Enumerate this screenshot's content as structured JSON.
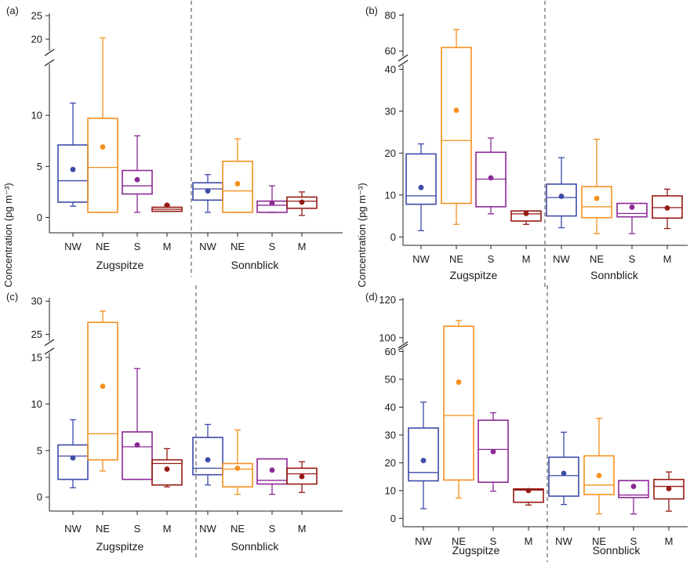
{
  "ylabel": "Concentration (pg m⁻³)",
  "groups": [
    "Zugspitze",
    "Sonnblick"
  ],
  "colors": {
    "NW": "#3c4aa8",
    "NE": "#f5901e",
    "S": "#8a2896",
    "M": "#961a14"
  },
  "chart_data": [
    {
      "type": "boxplot",
      "panel": "(a)",
      "categories": [
        "NW",
        "NE",
        "S",
        "M",
        "NW",
        "NE",
        "S",
        "M"
      ],
      "series": [
        {
          "name": "Zugspitze",
          "boxes": [
            {
              "cat": "NW",
              "min": 1.1,
              "q1": 1.5,
              "median": 3.6,
              "q3": 7.1,
              "max": 11.2,
              "mean": 4.7
            },
            {
              "cat": "NE",
              "min": 0.5,
              "q1": 0.5,
              "median": 4.9,
              "q3": 9.7,
              "max": 20.3,
              "mean": 6.9
            },
            {
              "cat": "S",
              "min": 0.5,
              "q1": 2.3,
              "median": 3.1,
              "q3": 4.6,
              "max": 8.0,
              "mean": 3.7
            },
            {
              "cat": "M",
              "min": 0.6,
              "q1": 0.6,
              "median": 0.8,
              "q3": 1.0,
              "max": 1.2,
              "mean": 1.2
            }
          ]
        },
        {
          "name": "Sonnblick",
          "boxes": [
            {
              "cat": "NW",
              "min": 0.5,
              "q1": 1.7,
              "median": 2.8,
              "q3": 3.4,
              "max": 4.2,
              "mean": 2.6
            },
            {
              "cat": "NE",
              "min": 0.5,
              "q1": 0.5,
              "median": 2.6,
              "q3": 5.5,
              "max": 7.7,
              "mean": 3.3
            },
            {
              "cat": "S",
              "min": 0.5,
              "q1": 0.5,
              "median": 1.2,
              "q3": 1.6,
              "max": 3.1,
              "mean": 1.4
            },
            {
              "cat": "M",
              "min": 0.2,
              "q1": 0.9,
              "median": 1.6,
              "q3": 2.0,
              "max": 2.5,
              "mean": 1.5
            }
          ]
        }
      ],
      "yticks_lower": [
        "0",
        "5",
        "10"
      ],
      "yticks_upper": [
        "20",
        "25"
      ],
      "ylim_lower": [
        -1.5,
        15
      ],
      "ylim_upper": [
        17.5,
        25.5
      ],
      "axis_break": true
    },
    {
      "type": "boxplot",
      "panel": "(b)",
      "categories": [
        "NW",
        "NE",
        "S",
        "M",
        "NW",
        "NE",
        "S",
        "M"
      ],
      "series": [
        {
          "name": "Zugspitze",
          "boxes": [
            {
              "cat": "NW",
              "min": 1.5,
              "q1": 7.8,
              "median": 9.8,
              "q3": 19.8,
              "max": 22.2,
              "mean": 11.8
            },
            {
              "cat": "NE",
              "min": 3.0,
              "q1": 8.0,
              "median": 23.0,
              "q3": 62.0,
              "max": 72.0,
              "mean": 30.2
            },
            {
              "cat": "S",
              "min": 5.5,
              "q1": 7.2,
              "median": 13.8,
              "q3": 20.2,
              "max": 23.6,
              "mean": 14.1
            },
            {
              "cat": "M",
              "min": 3.0,
              "q1": 3.8,
              "median": 5.5,
              "q3": 6.2,
              "max": 6.2,
              "mean": 5.6
            }
          ]
        },
        {
          "name": "Sonnblick",
          "boxes": [
            {
              "cat": "NW",
              "min": 2.2,
              "q1": 5.0,
              "median": 9.4,
              "q3": 12.6,
              "max": 18.9,
              "mean": 9.7
            },
            {
              "cat": "NE",
              "min": 0.8,
              "q1": 4.6,
              "median": 7.2,
              "q3": 12.0,
              "max": 23.3,
              "mean": 9.2
            },
            {
              "cat": "S",
              "min": 0.8,
              "q1": 4.8,
              "median": 5.6,
              "q3": 8.0,
              "max": 8.0,
              "mean": 7.1
            },
            {
              "cat": "M",
              "min": 2.0,
              "q1": 4.5,
              "median": 7.0,
              "q3": 9.8,
              "max": 11.4,
              "mean": 6.9
            }
          ]
        }
      ],
      "yticks_lower": [
        "0",
        "10",
        "20",
        "30",
        "40"
      ],
      "yticks_upper": [
        "60",
        "80"
      ],
      "ylim_lower": [
        -2,
        41
      ],
      "ylim_upper": [
        57,
        81
      ],
      "axis_break": true
    },
    {
      "type": "boxplot",
      "panel": "(c)",
      "categories": [
        "NW",
        "NE",
        "S",
        "M",
        "NW",
        "NE",
        "S",
        "M"
      ],
      "series": [
        {
          "name": "Zugspitze",
          "boxes": [
            {
              "cat": "NW",
              "min": 1.0,
              "q1": 1.9,
              "median": 4.4,
              "q3": 5.6,
              "max": 8.3,
              "mean": 4.2
            },
            {
              "cat": "NE",
              "min": 2.8,
              "q1": 4.0,
              "median": 6.8,
              "q3": 26.8,
              "max": 28.5,
              "mean": 11.9
            },
            {
              "cat": "S",
              "min": 1.9,
              "q1": 1.9,
              "median": 5.4,
              "q3": 7.0,
              "max": 13.8,
              "mean": 5.6
            },
            {
              "cat": "M",
              "min": 1.1,
              "q1": 1.3,
              "median": 3.6,
              "q3": 4.0,
              "max": 5.2,
              "mean": 3.0
            }
          ]
        },
        {
          "name": "Sonnblick",
          "boxes": [
            {
              "cat": "NW",
              "min": 1.3,
              "q1": 2.4,
              "median": 3.1,
              "q3": 6.4,
              "max": 7.8,
              "mean": 4.0
            },
            {
              "cat": "NE",
              "min": 0.3,
              "q1": 1.1,
              "median": 3.0,
              "q3": 3.6,
              "max": 7.2,
              "mean": 3.1
            },
            {
              "cat": "S",
              "min": 0.3,
              "q1": 1.4,
              "median": 1.8,
              "q3": 4.1,
              "max": 4.1,
              "mean": 2.9
            },
            {
              "cat": "M",
              "min": 0.5,
              "q1": 1.4,
              "median": 2.5,
              "q3": 3.1,
              "max": 3.8,
              "mean": 2.2
            }
          ]
        }
      ],
      "yticks_lower": [
        "0",
        "5",
        "10",
        "15"
      ],
      "yticks_upper": [
        "25",
        "30"
      ],
      "ylim_lower": [
        -1.5,
        15.5
      ],
      "ylim_upper": [
        24,
        30.5
      ],
      "axis_break": true
    },
    {
      "type": "boxplot",
      "panel": "(d)",
      "categories": [
        "NW",
        "NE",
        "S",
        "M",
        "NW",
        "NE",
        "S",
        "M"
      ],
      "series": [
        {
          "name": "Zugspitze",
          "boxes": [
            {
              "cat": "NW",
              "min": 3.5,
              "q1": 13.5,
              "median": 16.5,
              "q3": 32.5,
              "max": 41.8,
              "mean": 20.8
            },
            {
              "cat": "NE",
              "min": 7.3,
              "q1": 13.8,
              "median": 37.0,
              "q3": 106.0,
              "max": 109.0,
              "mean": 49.0
            },
            {
              "cat": "S",
              "min": 9.8,
              "q1": 13.0,
              "median": 24.8,
              "q3": 35.3,
              "max": 38.0,
              "mean": 24.0
            },
            {
              "cat": "M",
              "min": 4.8,
              "q1": 5.8,
              "median": 10.2,
              "q3": 10.6,
              "max": 10.6,
              "mean": 10.0
            }
          ]
        },
        {
          "name": "Sonnblick",
          "boxes": [
            {
              "cat": "NW",
              "min": 5.0,
              "q1": 8.0,
              "median": 15.4,
              "q3": 22.0,
              "max": 31.0,
              "mean": 16.2
            },
            {
              "cat": "NE",
              "min": 1.6,
              "q1": 8.6,
              "median": 12.0,
              "q3": 22.5,
              "max": 36.0,
              "mean": 15.4
            },
            {
              "cat": "S",
              "min": 1.6,
              "q1": 7.5,
              "median": 8.4,
              "q3": 13.6,
              "max": 13.6,
              "mean": 11.5
            },
            {
              "cat": "M",
              "min": 2.6,
              "q1": 7.0,
              "median": 11.5,
              "q3": 14.0,
              "max": 16.7,
              "mean": 10.7
            }
          ]
        }
      ],
      "yticks_lower": [
        "0",
        "10",
        "20",
        "30",
        "40",
        "50",
        "60"
      ],
      "yticks_upper": [
        "100",
        "120"
      ],
      "ylim_lower": [
        -3,
        61
      ],
      "ylim_upper": [
        97,
        121
      ],
      "axis_break": true
    }
  ]
}
